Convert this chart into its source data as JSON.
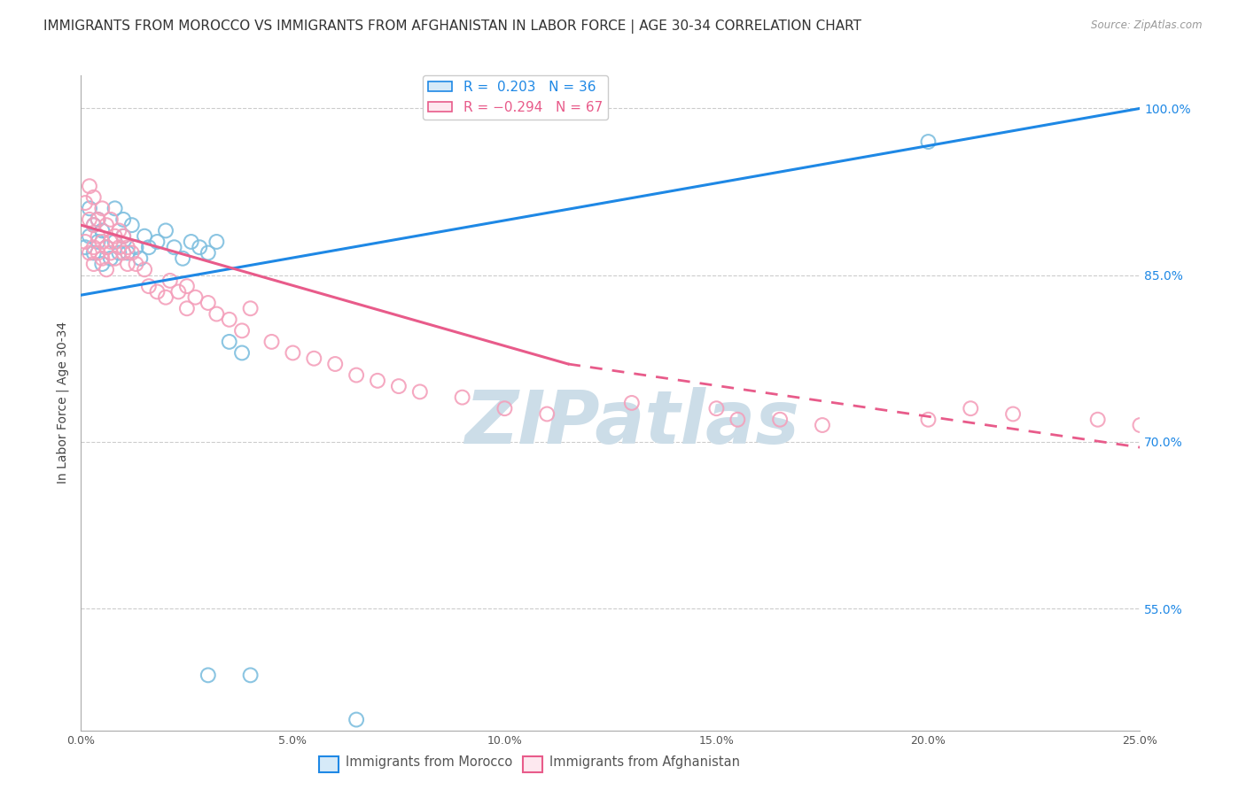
{
  "title": "IMMIGRANTS FROM MOROCCO VS IMMIGRANTS FROM AFGHANISTAN IN LABOR FORCE | AGE 30-34 CORRELATION CHART",
  "source": "Source: ZipAtlas.com",
  "ylabel": "In Labor Force | Age 30-34",
  "xlim": [
    0.0,
    0.25
  ],
  "ylim": [
    0.44,
    1.03
  ],
  "xticks": [
    0.0,
    0.05,
    0.1,
    0.15,
    0.2,
    0.25
  ],
  "xticklabels": [
    "0.0%",
    "5.0%",
    "10.0%",
    "15.0%",
    "20.0%",
    "25.0%"
  ],
  "yticks_right": [
    1.0,
    0.85,
    0.7,
    0.55
  ],
  "yticklabels_right": [
    "100.0%",
    "85.0%",
    "70.0%",
    "55.0%"
  ],
  "morocco_color": "#7fbfdf",
  "afghanistan_color": "#f4a0bb",
  "morocco_R": 0.203,
  "morocco_N": 36,
  "afghanistan_R": -0.294,
  "afghanistan_N": 67,
  "legend_label_morocco": "Immigrants from Morocco",
  "legend_label_afghanistan": "Immigrants from Afghanistan",
  "watermark": "ZIPatlas",
  "morocco_line": [
    0.0,
    0.25,
    0.832,
    1.0
  ],
  "afghanistan_line_solid": [
    0.0,
    0.115,
    0.895,
    0.77
  ],
  "afghanistan_line_dash": [
    0.115,
    0.25,
    0.77,
    0.695
  ],
  "title_fontsize": 11,
  "axis_label_fontsize": 10,
  "tick_fontsize": 9,
  "watermark_color": "#ccdde8",
  "background_color": "#ffffff"
}
